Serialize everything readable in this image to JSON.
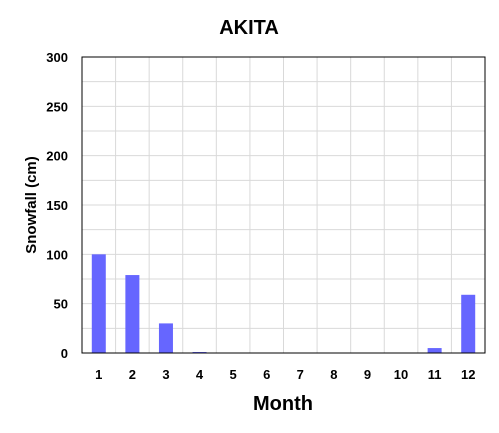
{
  "chart_data": {
    "type": "bar",
    "title": "AKITA",
    "xlabel": "Month",
    "ylabel": "Snowfall (cm)",
    "categories": [
      "1",
      "2",
      "3",
      "4",
      "5",
      "6",
      "7",
      "8",
      "9",
      "10",
      "11",
      "12"
    ],
    "values": [
      100,
      79,
      30,
      1,
      0,
      0,
      0,
      0,
      0,
      0,
      5,
      59
    ],
    "ylim": [
      0,
      300
    ],
    "yticks": [
      "0",
      "50",
      "100",
      "150",
      "200",
      "250",
      "300"
    ],
    "ytick_values": [
      0,
      50,
      100,
      150,
      200,
      250,
      300
    ],
    "grid": true,
    "bar_color": "#6666ff",
    "grid_color": "#d9d9d9"
  }
}
